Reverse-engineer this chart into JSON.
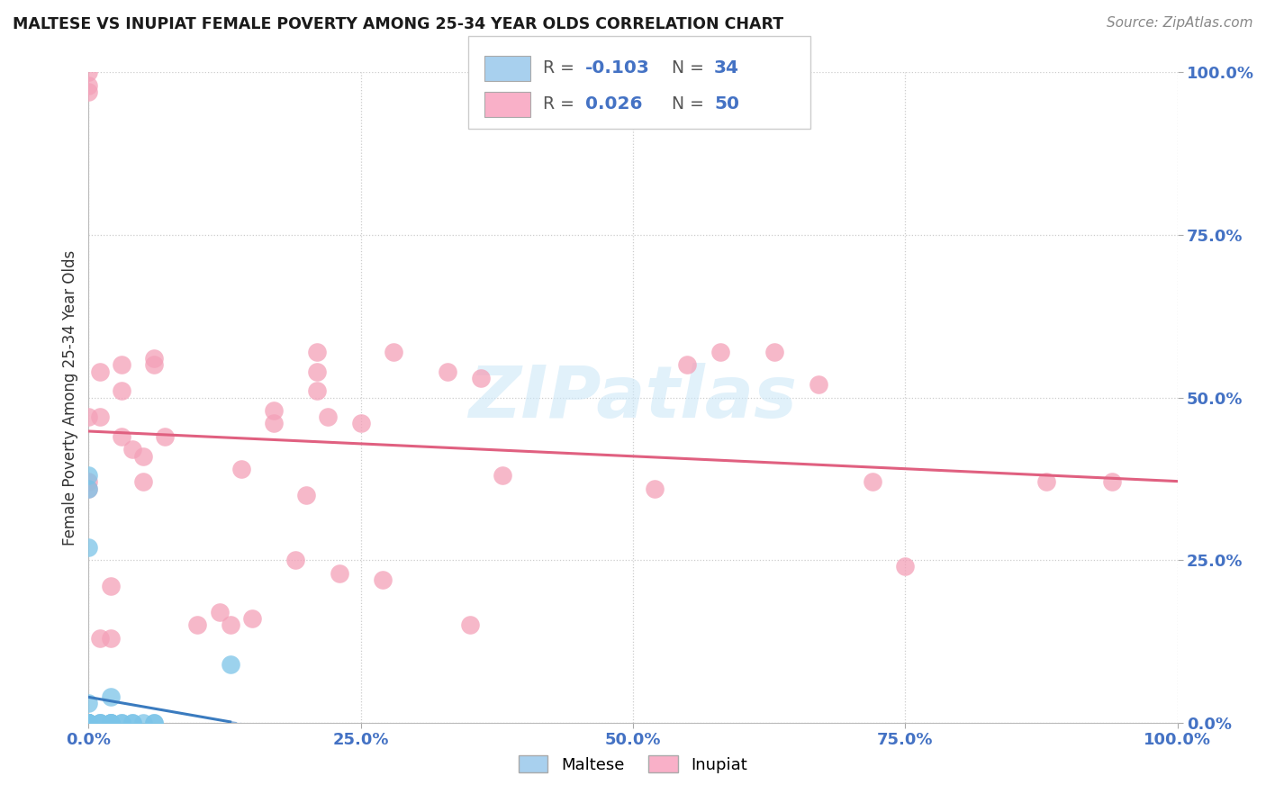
{
  "title": "MALTESE VS INUPIAT FEMALE POVERTY AMONG 25-34 YEAR OLDS CORRELATION CHART",
  "source": "Source: ZipAtlas.com",
  "ylabel": "Female Poverty Among 25-34 Year Olds",
  "ytick_labels": [
    "0.0%",
    "25.0%",
    "50.0%",
    "75.0%",
    "100.0%"
  ],
  "ytick_values": [
    0.0,
    0.25,
    0.5,
    0.75,
    1.0
  ],
  "xtick_labels": [
    "0.0%",
    "25.0%",
    "50.0%",
    "75.0%",
    "100.0%"
  ],
  "xtick_values": [
    0.0,
    0.25,
    0.5,
    0.75,
    1.0
  ],
  "legend_maltese": "Maltese",
  "legend_inupiat": "Inupiat",
  "R_maltese": -0.103,
  "N_maltese": 34,
  "R_inupiat": 0.026,
  "N_inupiat": 50,
  "maltese_color": "#7bc4e8",
  "inupiat_color": "#f4a0b8",
  "maltese_line_color": "#3a7bbf",
  "inupiat_line_color": "#e06080",
  "background_color": "#ffffff",
  "maltese_x": [
    0.0,
    0.0,
    0.0,
    0.0,
    0.0,
    0.0,
    0.0,
    0.0,
    0.0,
    0.0,
    0.0,
    0.0,
    0.0,
    0.0,
    0.0,
    0.01,
    0.01,
    0.01,
    0.02,
    0.02,
    0.02,
    0.02,
    0.02,
    0.03,
    0.03,
    0.04,
    0.04,
    0.05,
    0.06,
    0.06,
    0.0,
    0.0,
    0.13,
    0.0
  ],
  "maltese_y": [
    0.0,
    0.0,
    0.0,
    0.0,
    0.0,
    0.0,
    0.0,
    0.0,
    0.0,
    0.0,
    0.0,
    0.0,
    0.0,
    0.0,
    0.03,
    0.0,
    0.0,
    0.0,
    0.0,
    0.0,
    0.0,
    0.0,
    0.04,
    0.0,
    0.0,
    0.0,
    0.0,
    0.0,
    0.0,
    0.0,
    0.36,
    0.38,
    0.09,
    0.27
  ],
  "inupiat_x": [
    0.0,
    0.0,
    0.0,
    0.0,
    0.0,
    0.0,
    0.01,
    0.01,
    0.01,
    0.02,
    0.02,
    0.03,
    0.03,
    0.03,
    0.04,
    0.05,
    0.05,
    0.06,
    0.06,
    0.07,
    0.1,
    0.12,
    0.13,
    0.14,
    0.15,
    0.17,
    0.17,
    0.19,
    0.2,
    0.21,
    0.21,
    0.21,
    0.22,
    0.23,
    0.25,
    0.27,
    0.28,
    0.33,
    0.35,
    0.36,
    0.38,
    0.52,
    0.55,
    0.58,
    0.63,
    0.67,
    0.72,
    0.75,
    0.88,
    0.94
  ],
  "inupiat_y": [
    0.97,
    0.98,
    1.0,
    0.36,
    0.37,
    0.47,
    0.47,
    0.54,
    0.13,
    0.13,
    0.21,
    0.44,
    0.51,
    0.55,
    0.42,
    0.37,
    0.41,
    0.55,
    0.56,
    0.44,
    0.15,
    0.17,
    0.15,
    0.39,
    0.16,
    0.46,
    0.48,
    0.25,
    0.35,
    0.57,
    0.51,
    0.54,
    0.47,
    0.23,
    0.46,
    0.22,
    0.57,
    0.54,
    0.15,
    0.53,
    0.38,
    0.36,
    0.55,
    0.57,
    0.57,
    0.52,
    0.37,
    0.24,
    0.37,
    0.37
  ]
}
